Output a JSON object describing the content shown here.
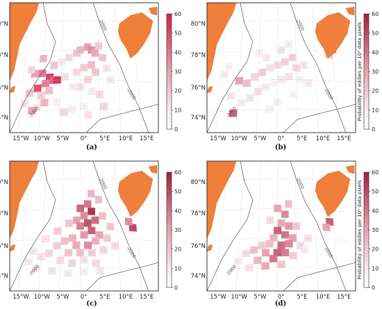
{
  "figure": {
    "colorbar_label": "Probability of eddies per 10⁴ data pixels",
    "colorbar_ticks": [
      "60",
      "50",
      "40",
      "30",
      "20",
      "10",
      "0"
    ],
    "lat_ticks": [
      "80°N",
      "78°N",
      "76°N",
      "74°N"
    ],
    "lon_ticks": [
      "15°W",
      "10°W",
      "5°W",
      "0°",
      "5°E",
      "10°E",
      "15°E"
    ],
    "contour_label": "-2000",
    "colors": {
      "land": "#ef7f3a",
      "low": "#f7eef1",
      "mid": "#e9a3b3",
      "high": "#c2143a",
      "cmap_top_a": "#d41e45",
      "cmap_top_b": "#a31f3a"
    }
  },
  "chart_data": [
    {
      "type": "heatmap",
      "panel": "(a)",
      "colorbar_range": [
        0,
        60
      ],
      "colorbar_ticks": [
        0,
        10,
        20,
        30,
        40,
        50,
        60
      ],
      "x_ticks": [
        "15°W",
        "10°W",
        "5°W",
        "0°",
        "5°E",
        "10°E",
        "15°E"
      ],
      "y_ticks": [
        "74°N",
        "76°N",
        "78°N",
        "80°N"
      ],
      "cells": [
        [
          -12,
          76.5,
          30
        ],
        [
          -10,
          76.5,
          40
        ],
        [
          -8,
          76.2,
          52
        ],
        [
          -7,
          76.0,
          45
        ],
        [
          -6,
          76.0,
          55
        ],
        [
          -11,
          75.5,
          48
        ],
        [
          -9,
          75.8,
          38
        ],
        [
          -13,
          75.2,
          20
        ],
        [
          -10,
          75.0,
          18
        ],
        [
          -8,
          75.3,
          22
        ],
        [
          -3,
          77.5,
          15
        ],
        [
          -1,
          77.8,
          20
        ],
        [
          0,
          78.0,
          25
        ],
        [
          2,
          78.2,
          30
        ],
        [
          3,
          78.0,
          35
        ],
        [
          4,
          77.8,
          28
        ],
        [
          3,
          77.0,
          22
        ],
        [
          1,
          76.8,
          18
        ],
        [
          -1,
          76.5,
          14
        ],
        [
          2,
          76.0,
          16
        ],
        [
          4,
          76.5,
          20
        ],
        [
          -4,
          76.2,
          12
        ],
        [
          -2,
          75.5,
          10
        ],
        [
          0,
          75.5,
          12
        ],
        [
          3,
          75.2,
          10
        ],
        [
          5,
          75.0,
          14
        ],
        [
          -14,
          74.5,
          12
        ],
        [
          -11,
          74.2,
          10
        ],
        [
          -6,
          74.5,
          8
        ],
        [
          -2,
          74.0,
          9
        ],
        [
          1,
          74.2,
          8
        ],
        [
          -13,
          76.8,
          15
        ],
        [
          -5,
          77.2,
          10
        ],
        [
          5,
          78.3,
          18
        ],
        [
          6,
          77.5,
          20
        ],
        [
          7,
          76.8,
          12
        ],
        [
          8,
          76.0,
          10
        ],
        [
          -9,
          74.5,
          25
        ],
        [
          -12,
          74.0,
          30
        ],
        [
          -4,
          73.8,
          15
        ],
        [
          2,
          73.6,
          12
        ],
        [
          6,
          74.2,
          16
        ],
        [
          -7,
          77.0,
          20
        ],
        [
          -10,
          77.5,
          25
        ]
      ]
    },
    {
      "type": "heatmap",
      "panel": "(b)",
      "colorbar_range": [
        0,
        60
      ],
      "colorbar_ticks": [
        0,
        10,
        20,
        30,
        40,
        50,
        60
      ],
      "colorbar_label": "Probability of eddies per 10⁴ data pixels",
      "x_ticks": [
        "15°W",
        "10°W",
        "5°W",
        "0°",
        "5°E",
        "10°E",
        "15°E"
      ],
      "y_ticks": [
        "74°N",
        "76°N",
        "78°N",
        "80°N"
      ],
      "cells": [
        [
          -10,
          76.0,
          30
        ],
        [
          -8,
          75.8,
          22
        ],
        [
          -6,
          76.2,
          15
        ],
        [
          -4,
          76.5,
          18
        ],
        [
          -2,
          76.8,
          12
        ],
        [
          0,
          77.0,
          14
        ],
        [
          2,
          77.2,
          16
        ],
        [
          4,
          77.5,
          18
        ],
        [
          -12,
          75.0,
          12
        ],
        [
          -9,
          74.5,
          10
        ],
        [
          -11,
          73.8,
          45
        ],
        [
          -7,
          74.8,
          12
        ],
        [
          -5,
          75.2,
          14
        ],
        [
          -3,
          75.5,
          10
        ],
        [
          -1,
          75.8,
          8
        ],
        [
          1,
          76.0,
          10
        ],
        [
          3,
          76.2,
          12
        ],
        [
          5,
          76.8,
          15
        ],
        [
          7,
          77.0,
          12
        ],
        [
          -3,
          77.5,
          10
        ],
        [
          -5,
          77.8,
          8
        ],
        [
          1,
          78.0,
          12
        ],
        [
          3,
          78.4,
          10
        ],
        [
          6,
          76.0,
          8
        ],
        [
          -14,
          76.5,
          10
        ],
        [
          -13,
          77.0,
          8
        ],
        [
          8,
          75.8,
          10
        ],
        [
          4,
          75.0,
          8
        ],
        [
          0,
          74.5,
          9
        ],
        [
          -2,
          74.0,
          8
        ],
        [
          15,
          78.2,
          40
        ],
        [
          14,
          77.8,
          20
        ]
      ]
    },
    {
      "type": "heatmap",
      "panel": "(c)",
      "colorbar_range": [
        0,
        60
      ],
      "colorbar_ticks": [
        0,
        10,
        20,
        30,
        40,
        50,
        60
      ],
      "x_ticks": [
        "15°W",
        "10°W",
        "5°W",
        "0°",
        "5°E",
        "10°E",
        "15°E"
      ],
      "y_ticks": [
        "74°N",
        "76°N",
        "78°N",
        "80°N"
      ],
      "cells": [
        [
          0,
          78.0,
          45
        ],
        [
          2,
          78.3,
          40
        ],
        [
          3,
          77.8,
          55
        ],
        [
          1,
          77.5,
          35
        ],
        [
          -1,
          77.2,
          30
        ],
        [
          2,
          77.0,
          48
        ],
        [
          4,
          77.2,
          42
        ],
        [
          0,
          76.8,
          38
        ],
        [
          3,
          76.5,
          45
        ],
        [
          1,
          76.2,
          32
        ],
        [
          -2,
          76.0,
          25
        ],
        [
          5,
          76.2,
          30
        ],
        [
          -4,
          75.8,
          22
        ],
        [
          -1,
          75.5,
          28
        ],
        [
          2,
          75.5,
          35
        ],
        [
          4,
          75.8,
          26
        ],
        [
          -6,
          75.5,
          18
        ],
        [
          -3,
          75.0,
          20
        ],
        [
          0,
          75.0,
          22
        ],
        [
          3,
          75.0,
          18
        ],
        [
          6,
          75.2,
          15
        ],
        [
          -8,
          75.0,
          15
        ],
        [
          -5,
          74.5,
          14
        ],
        [
          -2,
          74.3,
          16
        ],
        [
          1,
          74.5,
          12
        ],
        [
          4,
          74.3,
          14
        ],
        [
          -10,
          74.8,
          12
        ],
        [
          -12,
          75.2,
          10
        ],
        [
          -9,
          76.0,
          12
        ],
        [
          -6,
          76.5,
          18
        ],
        [
          -3,
          77.0,
          20
        ],
        [
          6,
          77.5,
          22
        ],
        [
          8,
          76.8,
          20
        ],
        [
          7,
          76.0,
          18
        ],
        [
          9,
          75.5,
          14
        ],
        [
          14,
          76.8,
          50
        ],
        [
          13,
          77.2,
          35
        ],
        [
          -11,
          74.0,
          10
        ],
        [
          -7,
          73.8,
          12
        ],
        [
          -3,
          73.6,
          10
        ],
        [
          1,
          73.7,
          9
        ],
        [
          5,
          73.8,
          11
        ],
        [
          -13,
          74.5,
          10
        ],
        [
          3,
          79.0,
          25
        ],
        [
          5,
          78.6,
          22
        ]
      ]
    },
    {
      "type": "heatmap",
      "panel": "(d)",
      "colorbar_range": [
        0,
        60
      ],
      "colorbar_ticks": [
        0,
        10,
        20,
        30,
        40,
        50,
        60
      ],
      "colorbar_label": "Probability of eddies per 10⁴ data pixels",
      "x_ticks": [
        "15°W",
        "10°W",
        "5°W",
        "0°",
        "5°E",
        "10°E",
        "15°E"
      ],
      "y_ticks": [
        "74°N",
        "76°N",
        "78°N",
        "80°N"
      ],
      "cells": [
        [
          0,
          78.0,
          30
        ],
        [
          2,
          77.6,
          35
        ],
        [
          1,
          77.0,
          28
        ],
        [
          3,
          76.8,
          32
        ],
        [
          0,
          76.5,
          45
        ],
        [
          2,
          76.2,
          40
        ],
        [
          4,
          76.0,
          30
        ],
        [
          -1,
          76.0,
          25
        ],
        [
          1,
          75.5,
          42
        ],
        [
          3,
          75.6,
          36
        ],
        [
          -2,
          75.6,
          22
        ],
        [
          -4,
          75.5,
          18
        ],
        [
          0,
          75.0,
          45
        ],
        [
          2,
          75.0,
          38
        ],
        [
          -3,
          75.0,
          30
        ],
        [
          -6,
          75.2,
          22
        ],
        [
          -1,
          74.6,
          40
        ],
        [
          -5,
          74.5,
          25
        ],
        [
          -8,
          75.0,
          14
        ],
        [
          4,
          74.8,
          18
        ],
        [
          6,
          75.5,
          14
        ],
        [
          5,
          76.8,
          20
        ],
        [
          -2,
          77.2,
          15
        ],
        [
          3,
          78.3,
          22
        ],
        [
          -10,
          74.5,
          10
        ],
        [
          -7,
          74.0,
          12
        ],
        [
          1,
          74.2,
          20
        ],
        [
          -3,
          74.1,
          28
        ],
        [
          14,
          77.2,
          45
        ],
        [
          13,
          76.8,
          30
        ],
        [
          8,
          76.0,
          12
        ],
        [
          7,
          75.2,
          10
        ]
      ]
    }
  ]
}
